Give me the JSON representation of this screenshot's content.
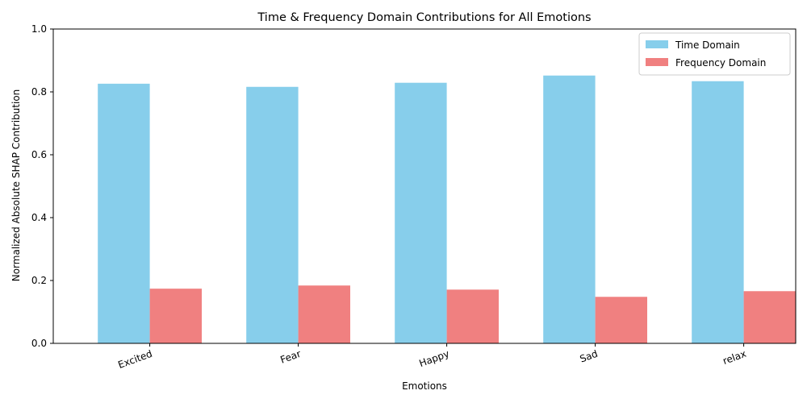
{
  "chart_data": {
    "type": "bar",
    "title": "Time & Frequency Domain Contributions for All Emotions",
    "xlabel": "Emotions",
    "ylabel": "Normalized Absolute SHAP Contribution",
    "categories": [
      "Excited",
      "Fear",
      "Happy",
      "Sad",
      "relax"
    ],
    "series": [
      {
        "name": "Time Domain",
        "color": "#87ceeb",
        "values": [
          0.826,
          0.816,
          0.829,
          0.852,
          0.834
        ]
      },
      {
        "name": "Frequency Domain",
        "color": "#f08080",
        "values": [
          0.174,
          0.184,
          0.171,
          0.148,
          0.166
        ]
      }
    ],
    "ylim": [
      0,
      1.0
    ],
    "yticks": [
      "0.0",
      "0.2",
      "0.4",
      "0.6",
      "0.8",
      "1.0"
    ],
    "grid": false,
    "legend_position": "top-right"
  }
}
